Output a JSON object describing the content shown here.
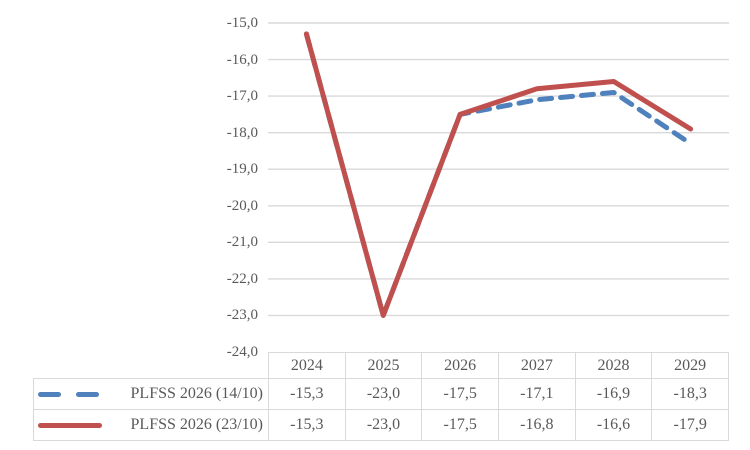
{
  "chart_data": {
    "type": "line",
    "title": "",
    "xlabel": "",
    "ylabel": "",
    "categories": [
      "2024",
      "2025",
      "2026",
      "2027",
      "2028",
      "2029"
    ],
    "series": [
      {
        "name": "PLFSS 2026 (14/10)",
        "values": [
          -15.3,
          -23.0,
          -17.5,
          -17.1,
          -16.9,
          -18.3
        ],
        "color": "#4F81BD",
        "line_style": "dashed"
      },
      {
        "name": "PLFSS 2026 (23/10)",
        "values": [
          -15.3,
          -23.0,
          -17.5,
          -16.8,
          -16.6,
          -17.9
        ],
        "color": "#C0504D",
        "line_style": "solid"
      }
    ],
    "ylim": [
      -24.0,
      -15.0
    ],
    "ytick_step": 1.0,
    "yticks": [
      "-15,0",
      "-16,0",
      "-17,0",
      "-18,0",
      "-19,0",
      "-20,0",
      "-21,0",
      "-22,0",
      "-23,0",
      "-24,0"
    ],
    "grid": true,
    "legend_position": "table-left",
    "number_format": "comma-decimal"
  },
  "table": {
    "header_years": [
      "2024",
      "2025",
      "2026",
      "2027",
      "2028",
      "2029"
    ],
    "rows": [
      {
        "label": "PLFSS 2026 (14/10)",
        "marker": "blue-dashed",
        "values": [
          "-15,3",
          "-23,0",
          "-17,5",
          "-17,1",
          "-16,9",
          "-18,3"
        ]
      },
      {
        "label": "PLFSS 2026 (23/10)",
        "marker": "red-solid",
        "values": [
          "-15,3",
          "-23,0",
          "-17,5",
          "-16,8",
          "-16,6",
          "-17,9"
        ]
      }
    ]
  },
  "colors": {
    "series_blue": "#4F81BD",
    "series_red": "#C0504D",
    "gridline": "#D9D9D9",
    "table_border": "#D9D9D9",
    "text": "#595959",
    "background": "#FFFFFF"
  }
}
